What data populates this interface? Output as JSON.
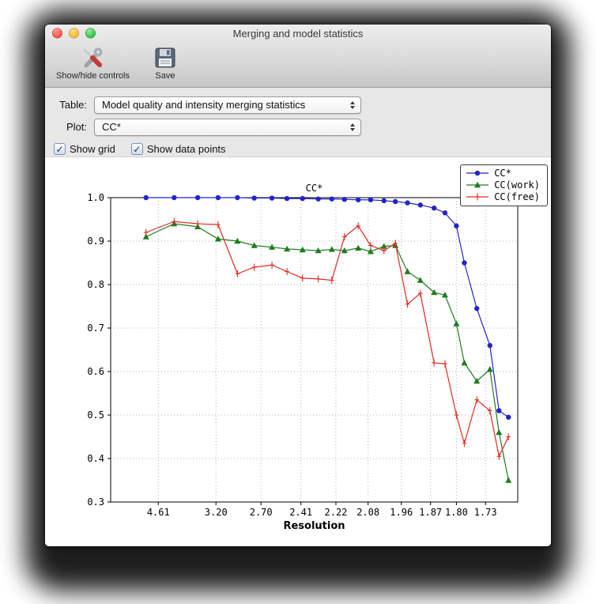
{
  "window": {
    "title": "Merging and model statistics"
  },
  "toolbar": {
    "items": [
      {
        "label": "Show/hide controls",
        "icon": "tools-icon"
      },
      {
        "label": "Save",
        "icon": "save-icon"
      }
    ]
  },
  "controls": {
    "table_label": "Table:",
    "table_value": "Model quality and intensity merging statistics",
    "plot_label": "Plot:",
    "plot_value": "CC*",
    "checkboxes": [
      {
        "label": "Show grid",
        "checked": true
      },
      {
        "label": "Show data points",
        "checked": true
      }
    ]
  },
  "icons": {
    "check": "✓"
  },
  "chart_data": {
    "type": "line",
    "title": "CC*",
    "xlabel": "Resolution",
    "ylabel": "",
    "ylim": [
      0.3,
      1.0
    ],
    "y_ticks": [
      0.3,
      0.4,
      0.5,
      0.6,
      0.7,
      0.8,
      0.9,
      1.0
    ],
    "x_scale": "inverse-d-squared",
    "x_axis_d_range": [
      13.8,
      1.661
    ],
    "grid": true,
    "show_data_points": true,
    "legend_position": "upper right",
    "x_ticks": {
      "d": [
        4.61,
        3.2,
        2.7,
        2.41,
        2.22,
        2.08,
        1.96,
        1.87,
        1.8,
        1.73
      ],
      "labels": [
        "4.61",
        "3.20",
        "2.70",
        "2.41",
        "2.22",
        "2.08",
        "1.96",
        "1.87",
        "1.80",
        "1.73"
      ]
    },
    "x_d": [
      5.25,
      4.05,
      3.5,
      3.17,
      2.93,
      2.76,
      2.61,
      2.5,
      2.4,
      2.31,
      2.24,
      2.18,
      2.12,
      2.07,
      2.02,
      1.98,
      1.94,
      1.9,
      1.86,
      1.83,
      1.8,
      1.78,
      1.75,
      1.72,
      1.7,
      1.68
    ],
    "series": [
      {
        "name": "CC*",
        "color": "#2424cc",
        "marker": "circle",
        "values": [
          1.0,
          1.0,
          1.0,
          1.0,
          1.0,
          0.999,
          0.999,
          0.998,
          0.998,
          0.997,
          0.997,
          0.996,
          0.995,
          0.995,
          0.993,
          0.991,
          0.988,
          0.983,
          0.976,
          0.965,
          0.935,
          0.85,
          0.745,
          0.66,
          0.51,
          0.495
        ]
      },
      {
        "name": "CC(work)",
        "color": "#1e7d1e",
        "marker": "triangle",
        "values": [
          0.91,
          0.94,
          0.933,
          0.905,
          0.9,
          0.89,
          0.886,
          0.882,
          0.88,
          0.878,
          0.881,
          0.878,
          0.884,
          0.876,
          0.888,
          0.89,
          0.83,
          0.81,
          0.782,
          0.776,
          0.71,
          0.62,
          0.578,
          0.605,
          0.46,
          0.35
        ]
      },
      {
        "name": "CC(free)",
        "color": "#e02b24",
        "marker": "plus",
        "values": [
          0.92,
          0.945,
          0.94,
          0.938,
          0.825,
          0.84,
          0.845,
          0.83,
          0.815,
          0.813,
          0.81,
          0.91,
          0.935,
          0.89,
          0.878,
          0.895,
          0.755,
          0.78,
          0.62,
          0.618,
          0.5,
          0.435,
          0.535,
          0.51,
          0.405,
          0.45
        ]
      }
    ]
  }
}
